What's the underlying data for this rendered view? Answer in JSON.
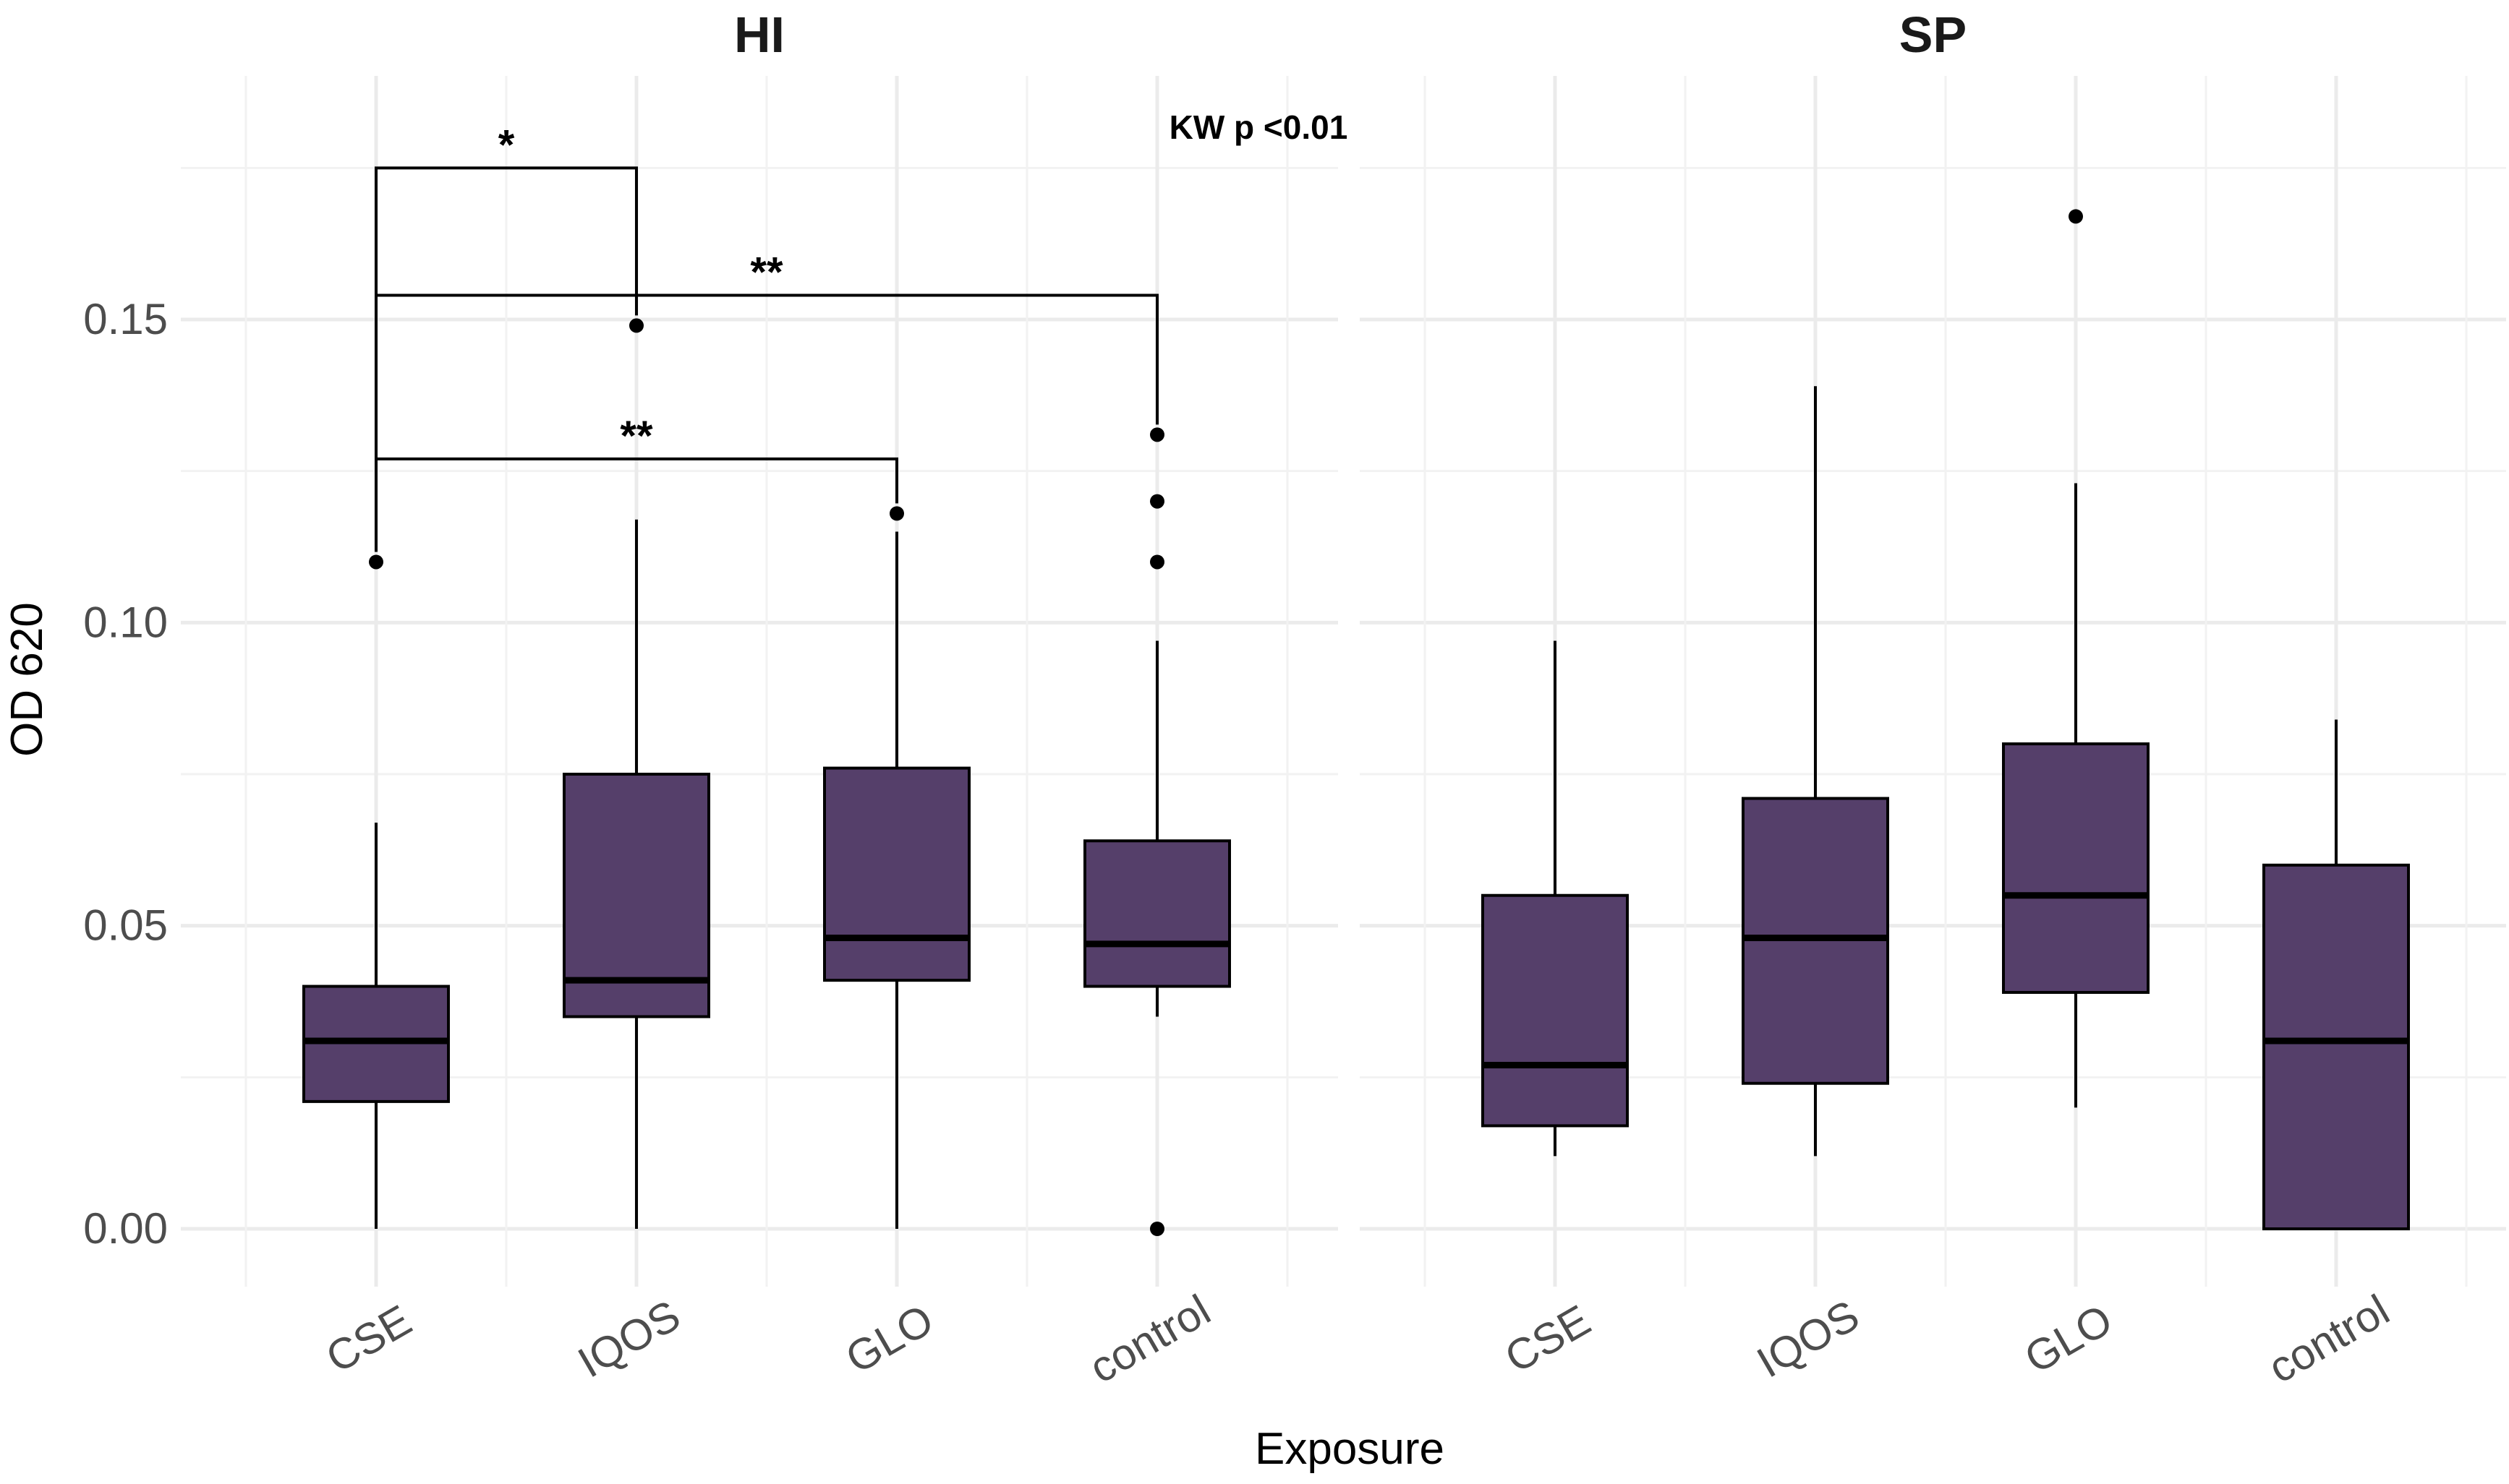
{
  "chart_data": {
    "type": "box",
    "ylabel": "OD 620",
    "xlabel": "Exposure",
    "ylim": [
      -0.008,
      0.192
    ],
    "yticks": [
      0.0,
      0.05,
      0.1,
      0.15
    ],
    "ytick_labels": [
      "0.00",
      "0.05",
      "0.10",
      "0.15"
    ],
    "categories": [
      "CSE",
      "IQOS",
      "GLO",
      "control"
    ],
    "box_color": "#553f6a",
    "grid": true,
    "panels": [
      {
        "title": "HI",
        "annotation": "KW p <0.01",
        "boxes": [
          {
            "category": "CSE",
            "whisker_low": 0.0,
            "q1": 0.021,
            "median": 0.031,
            "q3": 0.04,
            "whisker_high": 0.067,
            "outliers": [
              0.11
            ]
          },
          {
            "category": "IQOS",
            "whisker_low": 0.0,
            "q1": 0.035,
            "median": 0.041,
            "q3": 0.075,
            "whisker_high": 0.117,
            "outliers": [
              0.149
            ]
          },
          {
            "category": "GLO",
            "whisker_low": 0.0,
            "q1": 0.041,
            "median": 0.048,
            "q3": 0.076,
            "whisker_high": 0.115,
            "outliers": [
              0.118
            ]
          },
          {
            "category": "control",
            "whisker_low": 0.035,
            "q1": 0.04,
            "median": 0.047,
            "q3": 0.064,
            "whisker_high": 0.097,
            "outliers": [
              0.0,
              0.11,
              0.12,
              0.131
            ]
          }
        ],
        "comparisons": [
          {
            "from": "CSE",
            "to": "IQOS",
            "y": 0.175,
            "label": "*"
          },
          {
            "from": "CSE",
            "to": "control",
            "y": 0.154,
            "label": "**"
          },
          {
            "from": "CSE",
            "to": "GLO",
            "y": 0.127,
            "label": "**"
          }
        ]
      },
      {
        "title": "SP",
        "annotation": "",
        "boxes": [
          {
            "category": "CSE",
            "whisker_low": 0.012,
            "q1": 0.017,
            "median": 0.027,
            "q3": 0.055,
            "whisker_high": 0.097,
            "outliers": []
          },
          {
            "category": "IQOS",
            "whisker_low": 0.012,
            "q1": 0.024,
            "median": 0.048,
            "q3": 0.071,
            "whisker_high": 0.139,
            "outliers": []
          },
          {
            "category": "GLO",
            "whisker_low": 0.02,
            "q1": 0.039,
            "median": 0.055,
            "q3": 0.08,
            "whisker_high": 0.123,
            "outliers": [
              0.167
            ]
          },
          {
            "category": "control",
            "whisker_low": 0.0,
            "q1": 0.0,
            "median": 0.031,
            "q3": 0.06,
            "whisker_high": 0.084,
            "outliers": []
          }
        ],
        "comparisons": []
      }
    ]
  }
}
